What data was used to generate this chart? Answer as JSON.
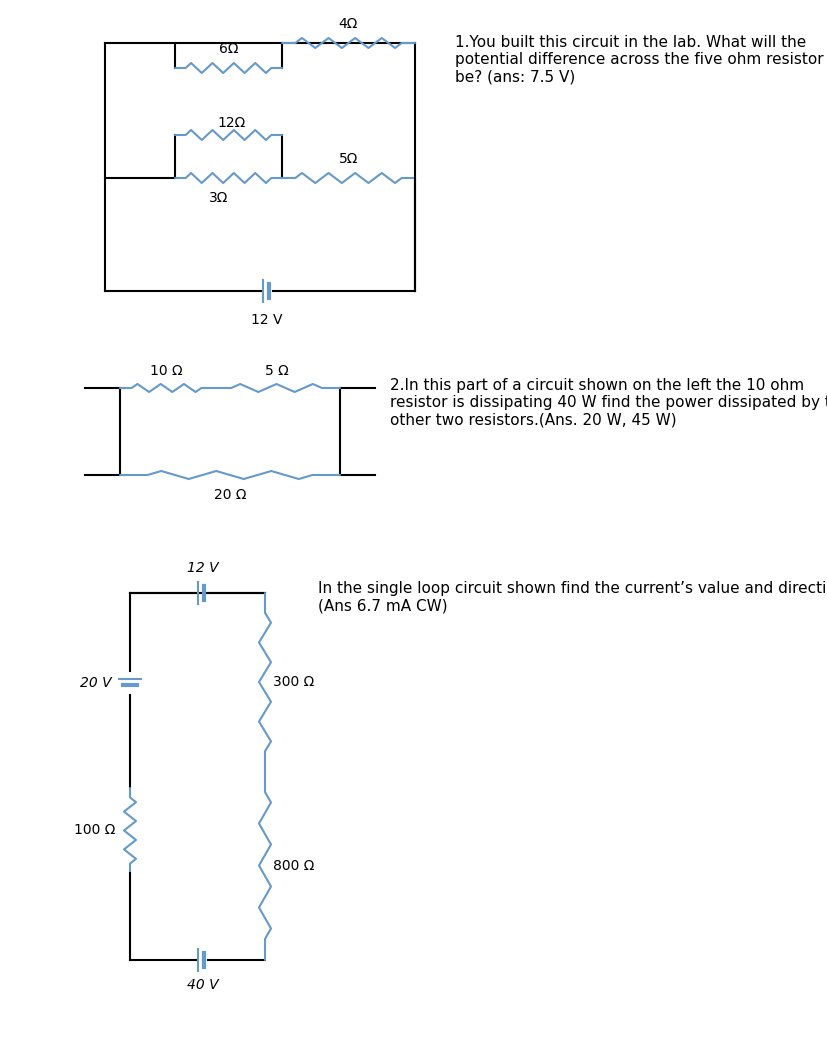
{
  "bg_color": "#ffffff",
  "resistor_color": "#6699cc",
  "wire_color": "#000000",
  "text_color": "#000000",
  "circuit1": {
    "title": "1.You built this circuit in the lab. What will the\npotential difference across the five ohm resistor\nbe? (ans: 7.5 V)",
    "battery_label": "12 V",
    "labels": {
      "r6": "6Ω",
      "r12": "12Ω",
      "r3": "3Ω",
      "r4": "4Ω",
      "r5": "5Ω"
    }
  },
  "circuit2": {
    "title": "2.In this part of a circuit shown on the left the 10 ohm\nresistor is dissipating 40 W find the power dissipated by the\nother two resistors.(Ans. 20 W, 45 W)",
    "labels": {
      "r10": "10 Ω",
      "r5": "5 Ω",
      "r20": "20 Ω"
    }
  },
  "circuit3": {
    "title": "In the single loop circuit shown find the current’s value and direction\n(Ans 6.7 mA CW)",
    "labels": {
      "r300": "300 Ω",
      "r800": "800 Ω",
      "r100": "100 Ω",
      "v12": "12 V",
      "v20": "20 V",
      "v40": "40 V"
    }
  }
}
